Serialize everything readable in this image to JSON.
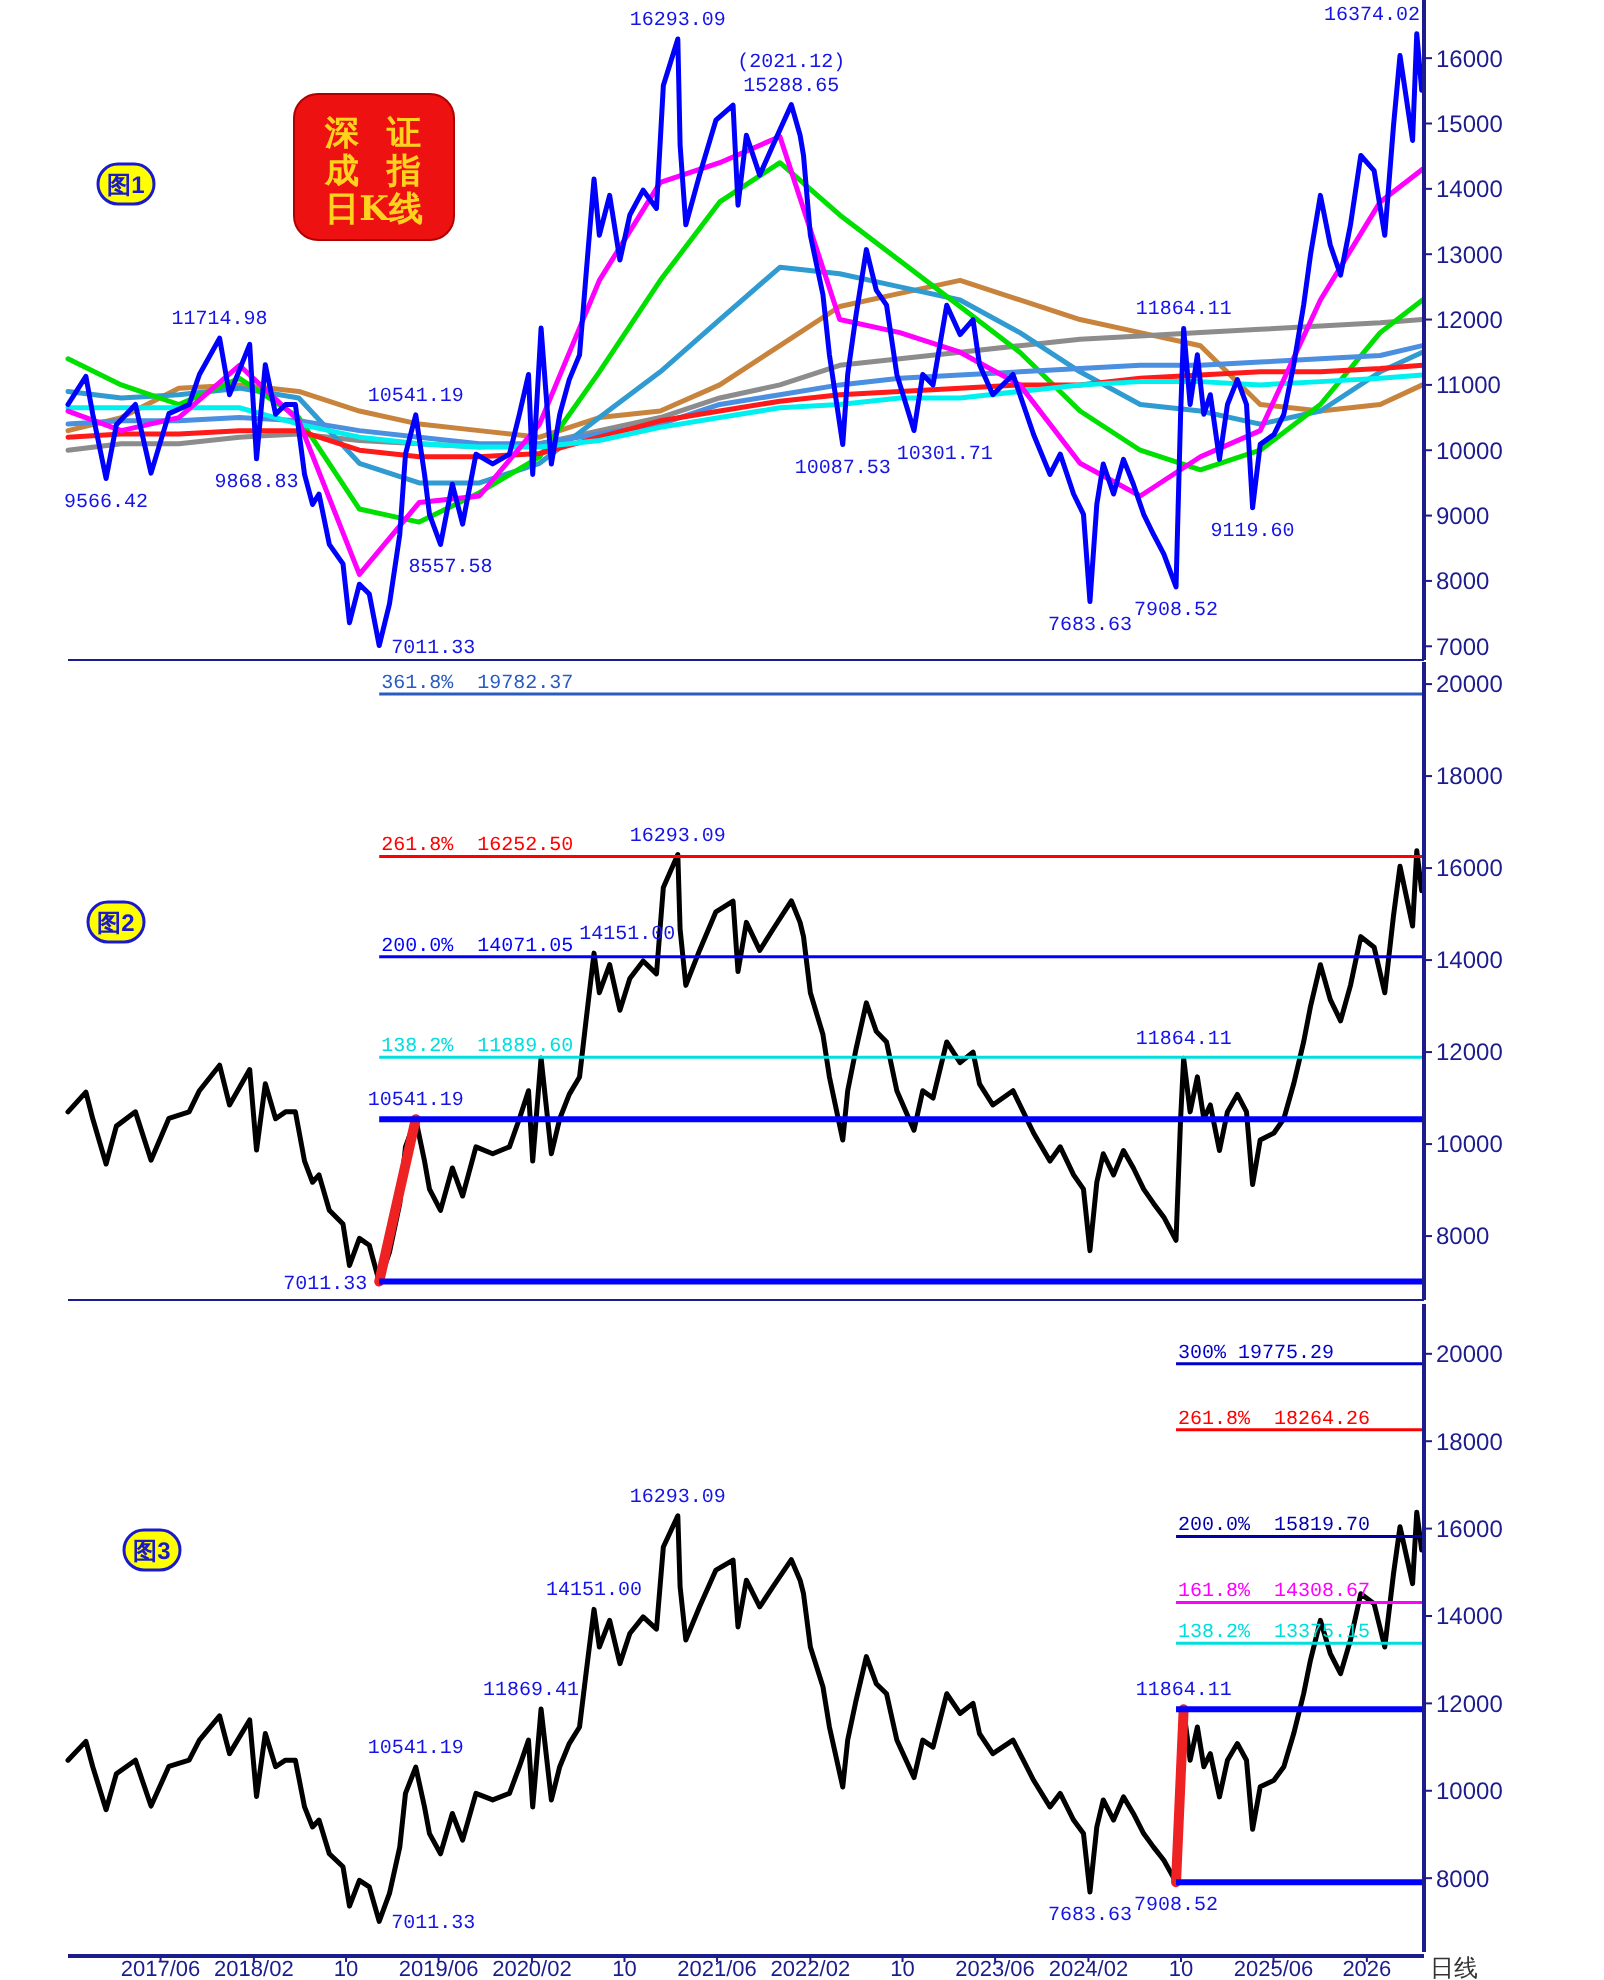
{
  "chart_data": [
    {
      "type": "line",
      "title": "深证成指日K线",
      "subtitle": "图1",
      "xlim": [
        "2016-10-01",
        "2026-07-01"
      ],
      "ylim": [
        6790,
        16890
      ],
      "yticks": [
        7000,
        8000,
        9000,
        10000,
        11000,
        12000,
        13000,
        14000,
        15000,
        16000
      ],
      "tick_labels": "y",
      "x": [
        "2016-10-01",
        "2016-11-17",
        "2016-12-05",
        "2017-01-09",
        "2017-02-05",
        "2017-03-27",
        "2017-05-07",
        "2017-06-23",
        "2017-08-15",
        "2017-09-11",
        "2017-11-03",
        "2017-11-29",
        "2018-01-21",
        "2018-02-08",
        "2018-03-03",
        "2018-03-30",
        "2018-04-25",
        "2018-05-21",
        "2018-06-14",
        "2018-07-05",
        "2018-07-22",
        "2018-08-18",
        "2018-09-23",
        "2018-10-10",
        "2018-11-05",
        "2018-12-01",
        "2018-12-27",
        "2019-01-23",
        "2019-02-19",
        "2019-03-06",
        "2019-04-02",
        "2019-04-25",
        "2019-05-08",
        "2019-06-06",
        "2019-07-07",
        "2019-08-03",
        "2019-09-07",
        "2019-10-21",
        "2019-12-04",
        "2019-12-30",
        "2020-01-23",
        "2020-02-03",
        "2020-02-25",
        "2020-03-23",
        "2020-04-14",
        "2020-05-09",
        "2020-06-05",
        "2020-06-22",
        "2020-07-13",
        "2020-07-27",
        "2020-08-23",
        "2020-09-19",
        "2020-10-15",
        "2020-11-19",
        "2020-12-24",
        "2021-01-11",
        "2021-02-18",
        "2021-02-24",
        "2021-03-11",
        "2021-04-16",
        "2021-05-29",
        "2021-07-13",
        "2021-07-26",
        "2021-08-17",
        "2021-09-21",
        "2021-10-26",
        "2021-12-13",
        "2022-01-05",
        "2022-01-14",
        "2022-02-01",
        "2022-03-06",
        "2022-03-23",
        "2022-04-27",
        "2022-05-10",
        "2022-06-01",
        "2022-06-28",
        "2022-07-24",
        "2022-08-20",
        "2022-09-16",
        "2022-10-31",
        "2022-11-23",
        "2022-12-20",
        "2023-01-25",
        "2023-03-01",
        "2023-04-04",
        "2023-04-21",
        "2023-05-26",
        "2023-07-18",
        "2023-08-14",
        "2023-09-10",
        "2023-10-23",
        "2023-11-19",
        "2023-12-24",
        "2024-01-19",
        "2024-02-05",
        "2024-02-23",
        "2024-03-11",
        "2024-04-07",
        "2024-05-03",
        "2024-05-29",
        "2024-06-25",
        "2024-07-21",
        "2024-08-17",
        "2024-09-18",
        "2024-09-30",
        "2024-10-08",
        "2024-10-25",
        "2024-11-13",
        "2024-11-30",
        "2024-12-17",
        "2025-01-10",
        "2025-01-31",
        "2025-02-26",
        "2025-03-22",
        "2025-04-07",
        "2025-04-27",
        "2025-06-02",
        "2025-06-28",
        "2025-07-24",
        "2025-08-19",
        "2025-09-06",
        "2025-10-02",
        "2025-10-28",
        "2025-11-24",
        "2025-12-20",
        "2026-01-16",
        "2026-02-20",
        "2026-03-20",
        "2026-04-12",
        "2026-04-29",
        "2026-06-01",
        "2026-06-12",
        "2026-06-25"
      ],
      "series": [
        {
          "color": "#c8843c",
          "x": [
            "2016-10-01",
            "2017-02-18",
            "2017-07-19",
            "2017-12-25",
            "2018-05-30",
            "2018-11-05",
            "2019-04-11",
            "2019-09-16",
            "2020-02-21",
            "2020-07-27",
            "2021-01-03",
            "2021-06-08",
            "2021-11-13",
            "2022-04-19",
            "2022-09-24",
            "2023-03-01",
            "2023-08-05",
            "2024-01-10",
            "2024-06-16",
            "2024-11-21",
            "2025-04-27",
            "2025-10-02",
            "2026-03-08",
            "2026-06-27"
          ],
          "values": [
            10300,
            10500,
            10950,
            11000,
            10900,
            10600,
            10400,
            10300,
            10200,
            10500,
            10600,
            11000,
            11600,
            12200,
            12400,
            12600,
            12300,
            12000,
            11800,
            11600,
            10700,
            10600,
            10700,
            11000
          ]
        },
        {
          "color": "#8c8c8c",
          "x": [
            "2016-10-01",
            "2017-02-18",
            "2017-07-19",
            "2017-12-25",
            "2018-05-30",
            "2018-11-05",
            "2019-04-11",
            "2019-09-16",
            "2020-02-21",
            "2020-07-27",
            "2021-01-03",
            "2021-06-08",
            "2021-11-13",
            "2022-04-19",
            "2022-09-24",
            "2023-03-01",
            "2023-08-05",
            "2024-01-10",
            "2024-06-16",
            "2024-11-21",
            "2025-04-27",
            "2025-10-02",
            "2026-03-08",
            "2026-06-27"
          ],
          "values": [
            10000,
            10100,
            10100,
            10200,
            10250,
            10150,
            10100,
            10050,
            10100,
            10300,
            10500,
            10800,
            11000,
            11300,
            11400,
            11500,
            11600,
            11700,
            11750,
            11800,
            11850,
            11900,
            11950,
            12000
          ]
        },
        {
          "color": "#2f9bd0",
          "x": [
            "2016-10-01",
            "2017-02-18",
            "2017-07-19",
            "2017-12-25",
            "2018-05-30",
            "2018-11-05",
            "2019-04-11",
            "2019-09-16",
            "2020-02-21",
            "2020-07-27",
            "2021-01-03",
            "2021-06-08",
            "2021-11-13",
            "2022-04-19",
            "2022-09-24",
            "2023-03-01",
            "2023-08-05",
            "2024-01-10",
            "2024-06-16",
            "2024-11-21",
            "2025-04-27",
            "2025-10-02",
            "2026-03-08",
            "2026-06-27"
          ],
          "values": [
            10900,
            10800,
            10850,
            10950,
            10800,
            9800,
            9500,
            9500,
            9800,
            10500,
            11200,
            12000,
            12800,
            12700,
            12500,
            12300,
            11800,
            11200,
            10700,
            10600,
            10400,
            10600,
            11200,
            11500
          ]
        },
        {
          "color": "#00e000",
          "x": [
            "2016-10-01",
            "2017-02-18",
            "2017-07-19",
            "2017-12-25",
            "2018-05-30",
            "2018-11-05",
            "2019-04-11",
            "2019-09-16",
            "2020-02-21",
            "2020-07-27",
            "2021-01-03",
            "2021-06-08",
            "2021-11-13",
            "2022-04-19",
            "2022-09-24",
            "2023-03-01",
            "2023-08-05",
            "2024-01-10",
            "2024-06-16",
            "2024-11-21",
            "2025-04-27",
            "2025-10-02",
            "2026-03-08",
            "2026-06-27"
          ],
          "values": [
            11400,
            11000,
            10700,
            11100,
            10500,
            9100,
            8900,
            9350,
            9900,
            11200,
            12600,
            13800,
            14400,
            13600,
            12900,
            12200,
            11500,
            10600,
            10000,
            9700,
            10000,
            10700,
            11800,
            12300
          ]
        },
        {
          "color": "#4a8fe0",
          "x": [
            "2016-10-01",
            "2017-02-18",
            "2017-07-19",
            "2017-12-25",
            "2018-05-30",
            "2018-11-05",
            "2019-04-11",
            "2019-09-16",
            "2020-02-21",
            "2020-07-27",
            "2021-01-03",
            "2021-06-08",
            "2021-11-13",
            "2022-04-19",
            "2022-09-24",
            "2023-03-01",
            "2023-08-05",
            "2024-01-10",
            "2024-06-16",
            "2024-11-21",
            "2025-04-27",
            "2025-10-02",
            "2026-03-08",
            "2026-06-27"
          ],
          "values": [
            10400,
            10450,
            10450,
            10500,
            10450,
            10300,
            10200,
            10100,
            10100,
            10250,
            10400,
            10700,
            10850,
            11000,
            11100,
            11150,
            11200,
            11250,
            11300,
            11300,
            11350,
            11400,
            11450,
            11600
          ]
        },
        {
          "color": "#ff1a1a",
          "x": [
            "2016-10-01",
            "2017-02-18",
            "2017-07-19",
            "2017-12-25",
            "2018-05-30",
            "2018-11-05",
            "2019-04-11",
            "2019-09-16",
            "2020-02-21",
            "2020-07-27",
            "2021-01-03",
            "2021-06-08",
            "2021-11-13",
            "2022-04-19",
            "2022-09-24",
            "2023-03-01",
            "2023-08-05",
            "2024-01-10",
            "2024-06-16",
            "2024-11-21",
            "2025-04-27",
            "2025-10-02",
            "2026-03-08",
            "2026-06-27"
          ],
          "values": [
            10200,
            10250,
            10250,
            10300,
            10300,
            10000,
            9900,
            9900,
            9950,
            10200,
            10450,
            10600,
            10750,
            10850,
            10900,
            10950,
            11000,
            11000,
            11100,
            11150,
            11200,
            11200,
            11250,
            11300
          ]
        },
        {
          "color": "#00f0f0",
          "x": [
            "2016-10-01",
            "2017-02-18",
            "2017-07-19",
            "2017-12-25",
            "2018-05-30",
            "2018-11-05",
            "2019-04-11",
            "2019-09-16",
            "2020-02-21",
            "2020-07-27",
            "2021-01-03",
            "2021-06-08",
            "2021-11-13",
            "2022-04-19",
            "2022-09-24",
            "2023-03-01",
            "2023-08-05",
            "2024-01-10",
            "2024-06-16",
            "2024-11-21",
            "2025-04-27",
            "2025-10-02",
            "2026-03-08",
            "2026-06-27"
          ],
          "values": [
            10650,
            10650,
            10650,
            10650,
            10400,
            10200,
            10100,
            10050,
            10050,
            10150,
            10350,
            10500,
            10650,
            10700,
            10800,
            10800,
            10900,
            11000,
            11050,
            11050,
            11000,
            11050,
            11100,
            11150
          ]
        },
        {
          "color": "#ff00ff",
          "x": [
            "2016-10-01",
            "2017-02-18",
            "2017-07-19",
            "2017-12-25",
            "2018-05-30",
            "2018-11-05",
            "2019-04-11",
            "2019-09-16",
            "2020-02-21",
            "2020-07-27",
            "2021-01-03",
            "2021-06-08",
            "2021-11-13",
            "2022-04-19",
            "2022-09-24",
            "2023-03-01",
            "2023-08-05",
            "2024-01-10",
            "2024-06-16",
            "2024-11-21",
            "2025-04-27",
            "2025-10-02",
            "2026-03-08",
            "2026-06-27"
          ],
          "values": [
            10600,
            10300,
            10500,
            11300,
            10450,
            8100,
            9200,
            9300,
            10400,
            12600,
            14100,
            14400,
            14800,
            12000,
            11800,
            11500,
            11000,
            9800,
            9300,
            9900,
            10300,
            12300,
            13800,
            14300
          ]
        },
        {
          "color": "#0000ff",
          "values": [
            10700,
            11130,
            10550,
            9566.42,
            10390,
            10700,
            9650,
            10560,
            10700,
            11160,
            11714.98,
            10850,
            11620,
            9868.83,
            11310,
            10550,
            10700,
            10700,
            9630,
            9170,
            9330,
            8560,
            8260,
            7360,
            7950,
            7800,
            7011.33,
            7650,
            8710,
            9940,
            10541.19,
            9630,
            9020,
            8557.58,
            9480,
            8870,
            9940,
            9790,
            9940,
            10550,
            11160,
            9630,
            11869.41,
            9790,
            10550,
            11080,
            11460,
            12680,
            14151,
            13290,
            13900,
            12910,
            13600,
            13980,
            13700,
            15580,
            16293.09,
            14670,
            13450,
            14210,
            15050,
            15280,
            13750,
            14820,
            14210,
            14670,
            15288.65,
            14820,
            14510,
            13290,
            12380,
            11460,
            10087.53,
            11160,
            12070,
            13070,
            12450,
            12220,
            11160,
            10301.71,
            11160,
            11000,
            12220,
            11770,
            12000,
            11310,
            10850,
            11160,
            10700,
            10240,
            9630,
            9940,
            9330,
            9020,
            7683.63,
            9170,
            9790,
            9330,
            9860,
            9480,
            9020,
            8710,
            8410,
            7908.52,
            10550,
            11864.11,
            10700,
            11460,
            10550,
            10850,
            9860,
            10700,
            11080,
            10700,
            9119.6,
            10090,
            10240,
            10550,
            11310,
            12220,
            12990,
            13900,
            13140,
            12680,
            13450,
            14510,
            14280,
            13290,
            14970,
            16040,
            14740,
            16374.02,
            15510
          ]
        }
      ],
      "annotations": [
        {
          "text": "9566.42",
          "x": "2017-01-09",
          "y": 9566.42
        },
        {
          "text": "11714.98",
          "x": "2017-11-03",
          "y": 11714.98
        },
        {
          "text": "9868.83",
          "x": "2018-02-08",
          "y": 9868.83
        },
        {
          "text": "7011.33",
          "x": "2018-12-27",
          "y": 7011.33
        },
        {
          "text": "10541.19",
          "x": "2019-04-02",
          "y": 10541.19
        },
        {
          "text": "8557.58",
          "x": "2019-06-06",
          "y": 8557.58
        },
        {
          "text": "16293.09",
          "x": "2021-02-18",
          "y": 16293.09
        },
        {
          "text": "15288.65",
          "x": "2021-12-13",
          "y": 15288.65
        },
        {
          "text": "(2021.12)",
          "x": "2021-12-13",
          "y": 15288.65
        },
        {
          "text": "10087.53",
          "x": "2022-04-27",
          "y": 10087.53
        },
        {
          "text": "10301.71",
          "x": "2022-10-31",
          "y": 10301.71
        },
        {
          "text": "7683.63",
          "x": "2024-02-05",
          "y": 7683.63
        },
        {
          "text": "7908.52",
          "x": "2024-09-18",
          "y": 7908.52
        },
        {
          "text": "11864.11",
          "x": "2024-10-08",
          "y": 11864.11
        },
        {
          "text": "9119.60",
          "x": "2025-04-07",
          "y": 9119.6
        },
        {
          "text": "16374.02",
          "x": "2026-06-12",
          "y": 16374.02
        }
      ]
    },
    {
      "type": "line",
      "subtitle": "图2",
      "xlim": [
        "2016-10-01",
        "2026-07-01"
      ],
      "ylim": [
        6610,
        20480
      ],
      "yticks": [
        8000,
        10000,
        12000,
        14000,
        16000,
        18000,
        20000
      ],
      "tick_labels": "y",
      "x": [
        "2016-10-01",
        "2016-11-17",
        "2016-12-05",
        "2017-01-09",
        "2017-02-05",
        "2017-03-27",
        "2017-05-07",
        "2017-06-23",
        "2017-08-15",
        "2017-09-11",
        "2017-11-03",
        "2017-11-29",
        "2018-01-21",
        "2018-02-08",
        "2018-03-03",
        "2018-03-30",
        "2018-04-25",
        "2018-05-21",
        "2018-06-14",
        "2018-07-05",
        "2018-07-22",
        "2018-08-18",
        "2018-09-23",
        "2018-10-10",
        "2018-11-05",
        "2018-12-01",
        "2018-12-27",
        "2019-01-23",
        "2019-02-19",
        "2019-03-06",
        "2019-04-02",
        "2019-04-25",
        "2019-05-08",
        "2019-06-06",
        "2019-07-07",
        "2019-08-03",
        "2019-09-07",
        "2019-10-21",
        "2019-12-04",
        "2019-12-30",
        "2020-01-23",
        "2020-02-03",
        "2020-02-25",
        "2020-03-23",
        "2020-04-14",
        "2020-05-09",
        "2020-06-05",
        "2020-06-22",
        "2020-07-13",
        "2020-07-27",
        "2020-08-23",
        "2020-09-19",
        "2020-10-15",
        "2020-11-19",
        "2020-12-24",
        "2021-01-11",
        "2021-02-18",
        "2021-02-24",
        "2021-03-11",
        "2021-04-16",
        "2021-05-29",
        "2021-07-13",
        "2021-07-26",
        "2021-08-17",
        "2021-09-21",
        "2021-10-26",
        "2021-12-13",
        "2022-01-05",
        "2022-01-14",
        "2022-02-01",
        "2022-03-06",
        "2022-03-23",
        "2022-04-27",
        "2022-05-10",
        "2022-06-01",
        "2022-06-28",
        "2022-07-24",
        "2022-08-20",
        "2022-09-16",
        "2022-10-31",
        "2022-11-23",
        "2022-12-20",
        "2023-01-25",
        "2023-03-01",
        "2023-04-04",
        "2023-04-21",
        "2023-05-26",
        "2023-07-18",
        "2023-08-14",
        "2023-09-10",
        "2023-10-23",
        "2023-11-19",
        "2023-12-24",
        "2024-01-19",
        "2024-02-05",
        "2024-02-23",
        "2024-03-11",
        "2024-04-07",
        "2024-05-03",
        "2024-05-29",
        "2024-06-25",
        "2024-07-21",
        "2024-08-17",
        "2024-09-18",
        "2024-09-30",
        "2024-10-08",
        "2024-10-25",
        "2024-11-13",
        "2024-11-30",
        "2024-12-17",
        "2025-01-10",
        "2025-01-31",
        "2025-02-26",
        "2025-03-22",
        "2025-04-07",
        "2025-04-27",
        "2025-06-02",
        "2025-06-28",
        "2025-07-24",
        "2025-08-19",
        "2025-09-06",
        "2025-10-02",
        "2025-10-28",
        "2025-11-24",
        "2025-12-20",
        "2026-01-16",
        "2026-02-20",
        "2026-03-20",
        "2026-04-12",
        "2026-04-29",
        "2026-06-01",
        "2026-06-12",
        "2026-06-25"
      ],
      "series": [
        {
          "color": "#000000",
          "values": [
            10700,
            11130,
            10550,
            9566.42,
            10390,
            10700,
            9650,
            10560,
            10700,
            11160,
            11714.98,
            10850,
            11620,
            9868.83,
            11310,
            10550,
            10700,
            10700,
            9630,
            9170,
            9330,
            8560,
            8260,
            7360,
            7950,
            7800,
            7011.33,
            7650,
            8710,
            9940,
            10541.19,
            9630,
            9020,
            8557.58,
            9480,
            8870,
            9940,
            9790,
            9940,
            10550,
            11160,
            9630,
            11869.41,
            9790,
            10550,
            11080,
            11460,
            12680,
            14151,
            13290,
            13900,
            12910,
            13600,
            13980,
            13700,
            15580,
            16293.09,
            14670,
            13450,
            14210,
            15050,
            15280,
            13750,
            14820,
            14210,
            14670,
            15288.65,
            14820,
            14510,
            13290,
            12380,
            11460,
            10087.53,
            11160,
            12070,
            13070,
            12450,
            12220,
            11160,
            10301.71,
            11160,
            11000,
            12220,
            11770,
            12000,
            11310,
            10850,
            11160,
            10700,
            10240,
            9630,
            9940,
            9330,
            9020,
            7683.63,
            9170,
            9790,
            9330,
            9860,
            9480,
            9020,
            8710,
            8410,
            7908.52,
            10550,
            11864.11,
            10700,
            11460,
            10550,
            10850,
            9860,
            10700,
            11080,
            10700,
            9119.6,
            10090,
            10240,
            10550,
            11310,
            12220,
            12990,
            13900,
            13140,
            12680,
            13450,
            14510,
            14280,
            13290,
            14970,
            16040,
            14740,
            16374.02,
            15510
          ]
        },
        {
          "color": "#ee2222",
          "x": [
            "2018-12-27",
            "2019-04-02"
          ],
          "values": [
            7011.33,
            10541.19
          ]
        }
      ],
      "ref_lines": [
        {
          "axis": "y",
          "value": 19782.37,
          "label": "361.8%  19782.37",
          "color": "#2a5cbf"
        },
        {
          "axis": "y",
          "value": 16252.5,
          "label": "261.8%  16252.50",
          "color": "#ff0000"
        },
        {
          "axis": "y",
          "value": 14071.05,
          "label": "200.0%  14071.05",
          "color": "#0000ff"
        },
        {
          "axis": "y",
          "value": 11889.6,
          "label": "138.2%  11889.60",
          "color": "#00dede"
        },
        {
          "axis": "y",
          "value": 10541.19,
          "color": "#0000ff"
        },
        {
          "axis": "y",
          "value": 7011.33,
          "color": "#0000ff"
        }
      ],
      "annotations": [
        {
          "text": "10541.19",
          "x": "2019-04-02",
          "y": 10541.19
        },
        {
          "text": "7011.33",
          "x": "2018-12-27",
          "y": 7011.33
        },
        {
          "text": "14151.00",
          "x": "2020-07-13",
          "y": 14151
        },
        {
          "text": "16293.09",
          "x": "2021-02-18",
          "y": 16293.09
        },
        {
          "text": "11864.11",
          "x": "2024-10-08",
          "y": 11864.11
        }
      ]
    },
    {
      "type": "line",
      "subtitle": "图3",
      "xlabel": "日线",
      "xlim": [
        "2016-10-01",
        "2026-07-01"
      ],
      "ylim": [
        6310,
        21140
      ],
      "yticks": [
        8000,
        10000,
        12000,
        14000,
        16000,
        18000,
        20000
      ],
      "xticks": [
        {
          "value": "2017-06",
          "label": "2017/06"
        },
        {
          "value": "2018-02",
          "label": "2018/02"
        },
        {
          "value": "2018-10",
          "label": "10"
        },
        {
          "value": "2019-06",
          "label": "2019/06"
        },
        {
          "value": "2020-02",
          "label": "2020/02"
        },
        {
          "value": "2020-10",
          "label": "10"
        },
        {
          "value": "2021-06",
          "label": "2021/06"
        },
        {
          "value": "2022-02",
          "label": "2022/02"
        },
        {
          "value": "2022-10",
          "label": "10"
        },
        {
          "value": "2023-06",
          "label": "2023/06"
        },
        {
          "value": "2024-02",
          "label": "2024/02"
        },
        {
          "value": "2024-10",
          "label": "10"
        },
        {
          "value": "2025-06",
          "label": "2025/06"
        },
        {
          "value": "2026-02",
          "label": "2026"
        }
      ],
      "x": [
        "2016-10-01",
        "2016-11-17",
        "2016-12-05",
        "2017-01-09",
        "2017-02-05",
        "2017-03-27",
        "2017-05-07",
        "2017-06-23",
        "2017-08-15",
        "2017-09-11",
        "2017-11-03",
        "2017-11-29",
        "2018-01-21",
        "2018-02-08",
        "2018-03-03",
        "2018-03-30",
        "2018-04-25",
        "2018-05-21",
        "2018-06-14",
        "2018-07-05",
        "2018-07-22",
        "2018-08-18",
        "2018-09-23",
        "2018-10-10",
        "2018-11-05",
        "2018-12-01",
        "2018-12-27",
        "2019-01-23",
        "2019-02-19",
        "2019-03-06",
        "2019-04-02",
        "2019-04-25",
        "2019-05-08",
        "2019-06-06",
        "2019-07-07",
        "2019-08-03",
        "2019-09-07",
        "2019-10-21",
        "2019-12-04",
        "2019-12-30",
        "2020-01-23",
        "2020-02-03",
        "2020-02-25",
        "2020-03-23",
        "2020-04-14",
        "2020-05-09",
        "2020-06-05",
        "2020-06-22",
        "2020-07-13",
        "2020-07-27",
        "2020-08-23",
        "2020-09-19",
        "2020-10-15",
        "2020-11-19",
        "2020-12-24",
        "2021-01-11",
        "2021-02-18",
        "2021-02-24",
        "2021-03-11",
        "2021-04-16",
        "2021-05-29",
        "2021-07-13",
        "2021-07-26",
        "2021-08-17",
        "2021-09-21",
        "2021-10-26",
        "2021-12-13",
        "2022-01-05",
        "2022-01-14",
        "2022-02-01",
        "2022-03-06",
        "2022-03-23",
        "2022-04-27",
        "2022-05-10",
        "2022-06-01",
        "2022-06-28",
        "2022-07-24",
        "2022-08-20",
        "2022-09-16",
        "2022-10-31",
        "2022-11-23",
        "2022-12-20",
        "2023-01-25",
        "2023-03-01",
        "2023-04-04",
        "2023-04-21",
        "2023-05-26",
        "2023-07-18",
        "2023-08-14",
        "2023-09-10",
        "2023-10-23",
        "2023-11-19",
        "2023-12-24",
        "2024-01-19",
        "2024-02-05",
        "2024-02-23",
        "2024-03-11",
        "2024-04-07",
        "2024-05-03",
        "2024-05-29",
        "2024-06-25",
        "2024-07-21",
        "2024-08-17",
        "2024-09-18",
        "2024-09-30",
        "2024-10-08",
        "2024-10-25",
        "2024-11-13",
        "2024-11-30",
        "2024-12-17",
        "2025-01-10",
        "2025-01-31",
        "2025-02-26",
        "2025-03-22",
        "2025-04-07",
        "2025-04-27",
        "2025-06-02",
        "2025-06-28",
        "2025-07-24",
        "2025-08-19",
        "2025-09-06",
        "2025-10-02",
        "2025-10-28",
        "2025-11-24",
        "2025-12-20",
        "2026-01-16",
        "2026-02-20",
        "2026-03-20",
        "2026-04-12",
        "2026-04-29",
        "2026-06-01",
        "2026-06-12",
        "2026-06-25"
      ],
      "series": [
        {
          "color": "#000000",
          "values": [
            10700,
            11130,
            10550,
            9566.42,
            10390,
            10700,
            9650,
            10560,
            10700,
            11160,
            11714.98,
            10850,
            11620,
            9868.83,
            11310,
            10550,
            10700,
            10700,
            9630,
            9170,
            9330,
            8560,
            8260,
            7360,
            7950,
            7800,
            7011.33,
            7650,
            8710,
            9940,
            10541.19,
            9630,
            9020,
            8557.58,
            9480,
            8870,
            9940,
            9790,
            9940,
            10550,
            11160,
            9630,
            11869.41,
            9790,
            10550,
            11080,
            11460,
            12680,
            14151,
            13290,
            13900,
            12910,
            13600,
            13980,
            13700,
            15580,
            16293.09,
            14670,
            13450,
            14210,
            15050,
            15280,
            13750,
            14820,
            14210,
            14670,
            15288.65,
            14820,
            14510,
            13290,
            12380,
            11460,
            10087.53,
            11160,
            12070,
            13070,
            12450,
            12220,
            11160,
            10301.71,
            11160,
            11000,
            12220,
            11770,
            12000,
            11310,
            10850,
            11160,
            10700,
            10240,
            9630,
            9940,
            9330,
            9020,
            7683.63,
            9170,
            9790,
            9330,
            9860,
            9480,
            9020,
            8710,
            8410,
            7908.52,
            10550,
            11864.11,
            10700,
            11460,
            10550,
            10850,
            9860,
            10700,
            11080,
            10700,
            9119.6,
            10090,
            10240,
            10550,
            11310,
            12220,
            12990,
            13900,
            13140,
            12680,
            13450,
            14510,
            14280,
            13290,
            14970,
            16040,
            14740,
            16374.02,
            15510
          ]
        },
        {
          "color": "#ee2222",
          "x": [
            "2024-09-18",
            "2024-10-08"
          ],
          "values": [
            7908.52,
            11864.11
          ]
        }
      ],
      "ref_lines": [
        {
          "axis": "y",
          "value": 19775.29,
          "label": "300% 19775.29",
          "color": "#0000cc"
        },
        {
          "axis": "y",
          "value": 18264.26,
          "label": "261.8%  18264.26",
          "color": "#ff0000"
        },
        {
          "axis": "y",
          "value": 15819.7,
          "label": "200.0%  15819.70",
          "color": "#0000aa"
        },
        {
          "axis": "y",
          "value": 14308.67,
          "label": "161.8%  14308.67",
          "color": "#ff00ff"
        },
        {
          "axis": "y",
          "value": 13375.15,
          "label": "138.2%  13375.15",
          "color": "#00dede"
        },
        {
          "axis": "y",
          "value": 11864.11,
          "color": "#0000ff"
        },
        {
          "axis": "y",
          "value": 7908.52,
          "color": "#0000ff"
        }
      ],
      "annotations": [
        {
          "text": "7011.33",
          "x": "2018-12-27",
          "y": 7011.33
        },
        {
          "text": "10541.19",
          "x": "2019-04-02",
          "y": 10541.19
        },
        {
          "text": "11869.41",
          "x": "2020-02-25",
          "y": 11869.41
        },
        {
          "text": "14151.00",
          "x": "2020-07-13",
          "y": 14151
        },
        {
          "text": "16293.09",
          "x": "2021-02-18",
          "y": 16293.09
        },
        {
          "text": "7683.63",
          "x": "2024-02-05",
          "y": 7683.63
        },
        {
          "text": "7908.52",
          "x": "2024-09-18",
          "y": 7908.52
        },
        {
          "text": "11864.11",
          "x": "2024-10-08",
          "y": 11864.11
        }
      ]
    }
  ]
}
